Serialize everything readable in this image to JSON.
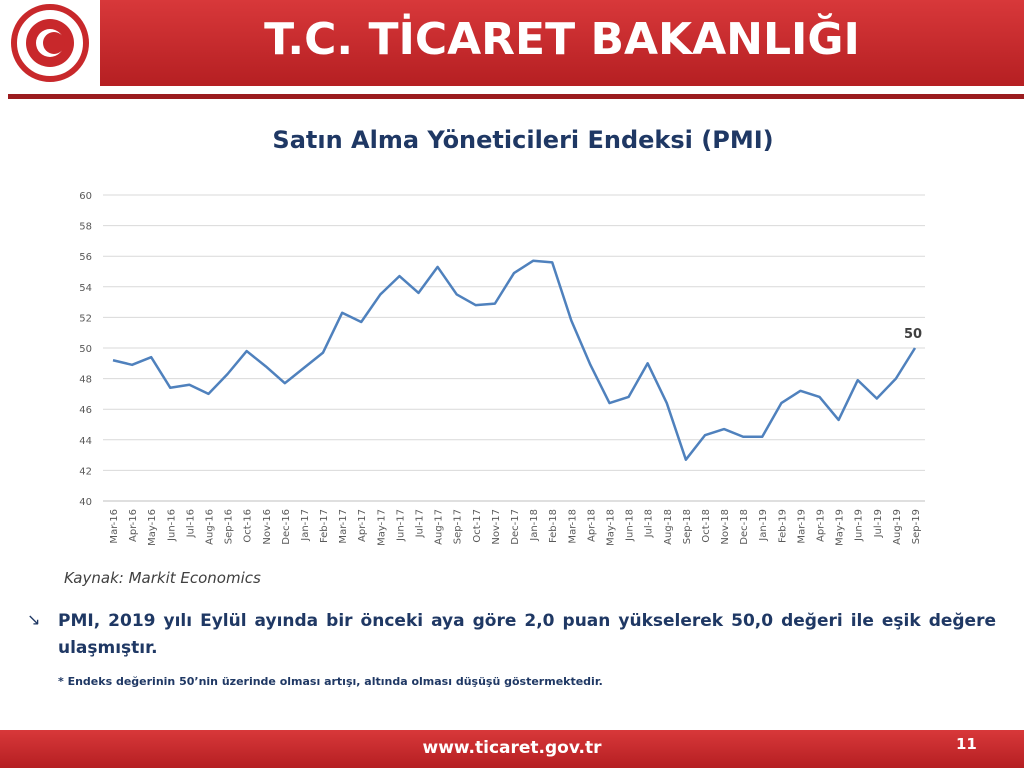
{
  "header": {
    "title": "T.C. TİCARET BAKANLIĞI"
  },
  "chart_data": {
    "type": "line",
    "title": "Satın Alma Yöneticileri Endeksi (PMI)",
    "categories": [
      "Mar-16",
      "Apr-16",
      "May-16",
      "Jun-16",
      "Jul-16",
      "Aug-16",
      "Sep-16",
      "Oct-16",
      "Nov-16",
      "Dec-16",
      "Jan-17",
      "Feb-17",
      "Mar-17",
      "Apr-17",
      "May-17",
      "Jun-17",
      "Jul-17",
      "Aug-17",
      "Sep-17",
      "Oct-17",
      "Nov-17",
      "Dec-17",
      "Jan-18",
      "Feb-18",
      "Mar-18",
      "Apr-18",
      "May-18",
      "Jun-18",
      "Jul-18",
      "Aug-18",
      "Sep-18",
      "Oct-18",
      "Nov-18",
      "Dec-18",
      "Jan-19",
      "Feb-19",
      "Mar-19",
      "Apr-19",
      "May-19",
      "Jun-19",
      "Jul-19",
      "Aug-19",
      "Sep-19"
    ],
    "series": [
      {
        "name": "PMI",
        "color": "#4f81bd",
        "values": [
          49.2,
          48.9,
          49.4,
          47.4,
          47.6,
          47.0,
          48.3,
          49.8,
          48.8,
          47.7,
          48.7,
          49.7,
          52.3,
          51.7,
          53.5,
          54.7,
          53.6,
          55.3,
          53.5,
          52.8,
          52.9,
          54.9,
          55.7,
          55.6,
          51.8,
          48.9,
          46.4,
          46.8,
          49.0,
          46.4,
          42.7,
          44.3,
          44.7,
          44.2,
          44.2,
          46.4,
          47.2,
          46.8,
          45.3,
          47.9,
          46.7,
          48.0,
          50
        ],
        "value_labels": [
          null,
          null,
          null,
          null,
          null,
          null,
          null,
          null,
          null,
          null,
          null,
          null,
          null,
          null,
          null,
          null,
          null,
          null,
          null,
          null,
          null,
          null,
          null,
          null,
          null,
          null,
          null,
          null,
          null,
          null,
          null,
          null,
          null,
          null,
          null,
          null,
          null,
          null,
          null,
          null,
          null,
          null,
          "50"
        ]
      }
    ],
    "ylim": [
      40,
      60
    ],
    "yticks": [
      40,
      42,
      44,
      46,
      48,
      50,
      52,
      54,
      56,
      58,
      60
    ],
    "grid": true
  },
  "source": "Kaynak: Markit Economics",
  "bullet": "PMI, 2019 yılı Eylül ayında bir önceki aya göre 2,0 puan yükselerek 50,0 değeri ile eşik değere ulaşmıştır.",
  "note": "* Endeks değerinin 50’nin üzerinde olması artışı, altında olması düşüşü göstermektedir.",
  "footer": {
    "url": "www.ticaret.gov.tr",
    "page": "11"
  }
}
